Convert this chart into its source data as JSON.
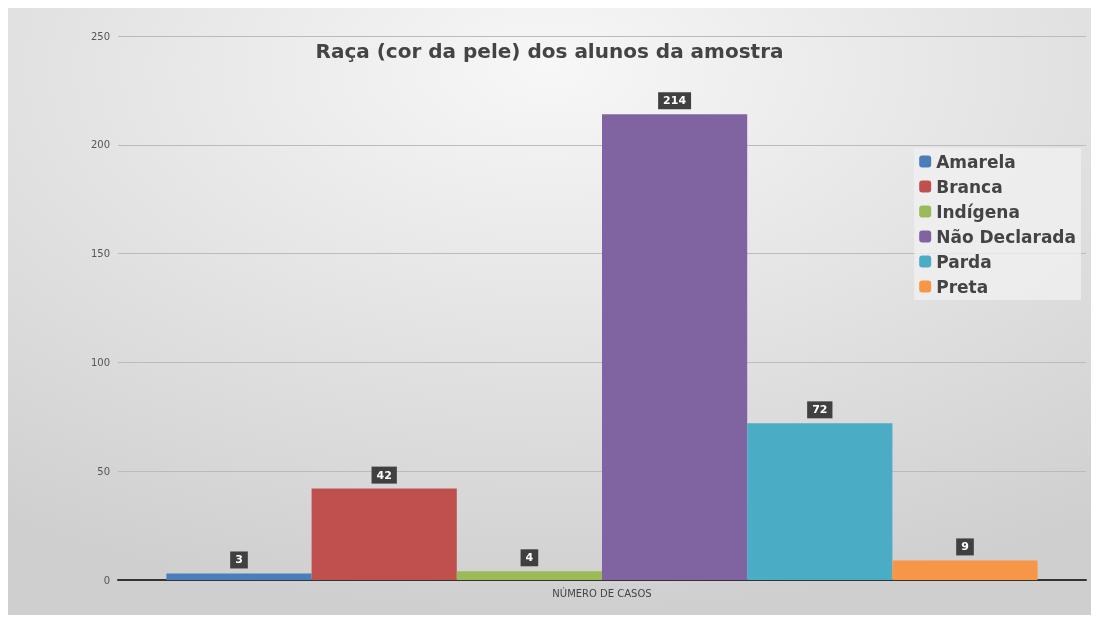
{
  "chart_data": {
    "type": "bar",
    "title": "Raça (cor da pele) dos alunos da amostra",
    "categories": [
      "NÚMERO DE CASOS"
    ],
    "series": [
      {
        "name": "Amarela",
        "color": "#4a7ebb",
        "values": [
          3
        ]
      },
      {
        "name": "Branca",
        "color": "#c0504d",
        "values": [
          42
        ]
      },
      {
        "name": "Indígena",
        "color": "#9bbb59",
        "values": [
          4
        ]
      },
      {
        "name": "Não Declarada",
        "color": "#8064a2",
        "values": [
          214
        ]
      },
      {
        "name": "Parda",
        "color": "#4bacc6",
        "values": [
          72
        ]
      },
      {
        "name": "Preta",
        "color": "#f79646",
        "values": [
          9
        ]
      }
    ],
    "ylim": [
      0,
      250
    ],
    "yticks": [
      0,
      50,
      100,
      150,
      200,
      250
    ],
    "grid": "y",
    "legend": "top right",
    "data_labels": true
  }
}
